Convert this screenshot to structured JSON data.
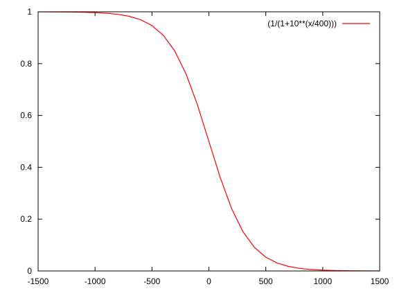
{
  "chart_data": {
    "type": "line",
    "title": "",
    "xlabel": "",
    "ylabel": "",
    "xlim": [
      -1500,
      1500
    ],
    "ylim": [
      0,
      1
    ],
    "x_ticks": [
      {
        "value": -1500,
        "label": "-1500"
      },
      {
        "value": -1000,
        "label": "-1000"
      },
      {
        "value": -500,
        "label": "-500"
      },
      {
        "value": 0,
        "label": "0"
      },
      {
        "value": 500,
        "label": "500"
      },
      {
        "value": 1000,
        "label": "1000"
      },
      {
        "value": 1500,
        "label": "1500"
      }
    ],
    "y_ticks": [
      {
        "value": 0,
        "label": "0"
      },
      {
        "value": 0.2,
        "label": "0.2"
      },
      {
        "value": 0.4,
        "label": "0.4"
      },
      {
        "value": 0.6,
        "label": "0.6"
      },
      {
        "value": 0.8,
        "label": "0.8"
      },
      {
        "value": 1,
        "label": "1"
      }
    ],
    "grid": false,
    "legend_position": "top-right",
    "series": [
      {
        "name": "(1/(1+10**(x/400)))",
        "color": "#ff0000",
        "x": [
          -1500,
          -1400,
          -1300,
          -1200,
          -1100,
          -1000,
          -900,
          -800,
          -700,
          -600,
          -500,
          -400,
          -300,
          -200,
          -100,
          0,
          100,
          200,
          300,
          400,
          500,
          600,
          700,
          800,
          900,
          1000,
          1100,
          1200,
          1300,
          1400,
          1500
        ],
        "y": [
          0.9998,
          0.9997,
          0.9994,
          0.999,
          0.9982,
          0.9968,
          0.9944,
          0.9901,
          0.9826,
          0.9693,
          0.9468,
          0.9091,
          0.849,
          0.7597,
          0.6401,
          0.5,
          0.3599,
          0.2403,
          0.151,
          0.0909,
          0.0532,
          0.0307,
          0.0174,
          0.0099,
          0.0056,
          0.0032,
          0.0018,
          0.001,
          0.0006,
          0.0003,
          0.0002
        ]
      }
    ]
  }
}
